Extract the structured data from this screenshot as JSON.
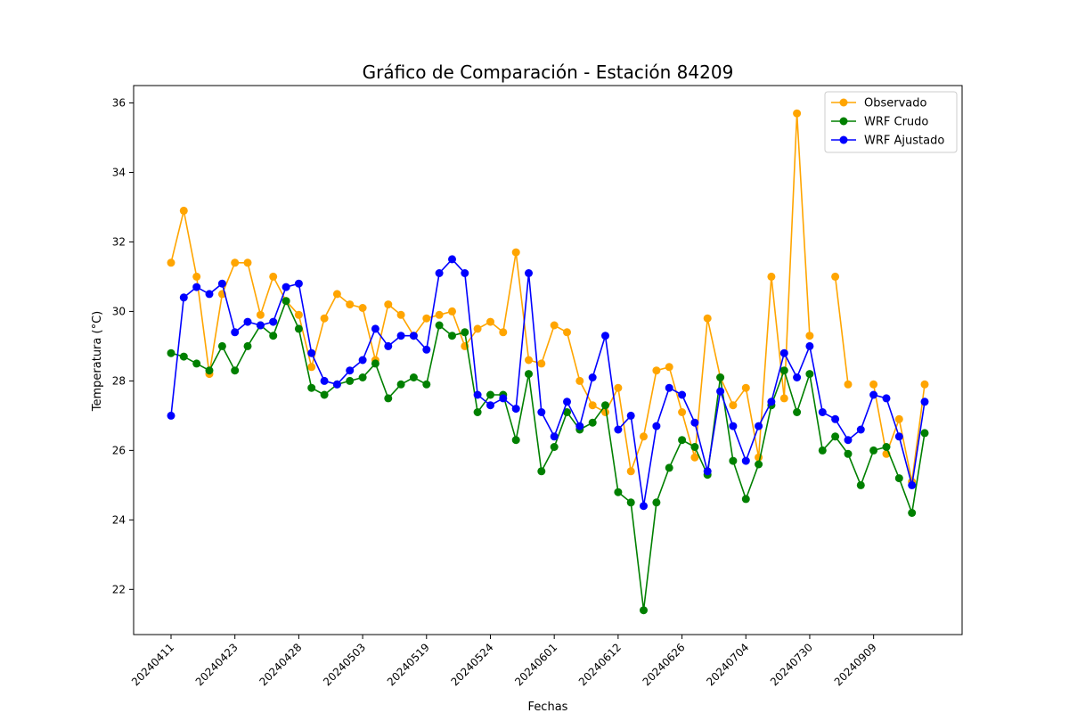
{
  "chart_data": {
    "type": "line",
    "title": "Gráfico de Comparación - Estación 84209",
    "xlabel": "Fechas",
    "ylabel": "Temperatura (°C)",
    "ylim": [
      20.7,
      36.5
    ],
    "yticks": [
      22,
      24,
      26,
      28,
      30,
      32,
      34,
      36
    ],
    "xticks": [
      {
        "index": 0,
        "label": "20240411"
      },
      {
        "index": 5,
        "label": "20240423"
      },
      {
        "index": 10,
        "label": "20240428"
      },
      {
        "index": 15,
        "label": "20240503"
      },
      {
        "index": 20,
        "label": "20240519"
      },
      {
        "index": 25,
        "label": "20240524"
      },
      {
        "index": 30,
        "label": "20240601"
      },
      {
        "index": 35,
        "label": "20240612"
      },
      {
        "index": 40,
        "label": "20240626"
      },
      {
        "index": 45,
        "label": "20240704"
      },
      {
        "index": 50,
        "label": "20240730"
      },
      {
        "index": 55,
        "label": "20240909"
      }
    ],
    "grid": false,
    "legend": "top-right",
    "series": [
      {
        "name": "Observado",
        "color": "#ffa500",
        "values": [
          31.4,
          32.9,
          31.0,
          28.2,
          30.5,
          31.4,
          31.4,
          29.9,
          31.0,
          30.3,
          29.9,
          28.4,
          29.8,
          30.5,
          30.2,
          30.1,
          28.6,
          30.2,
          29.9,
          29.3,
          29.8,
          29.9,
          30.0,
          29.0,
          29.5,
          29.7,
          29.4,
          31.7,
          28.6,
          28.5,
          29.6,
          29.4,
          28.0,
          27.3,
          27.1,
          27.8,
          25.4,
          26.4,
          28.3,
          28.4,
          27.1,
          25.8,
          29.8,
          28.1,
          27.3,
          27.8,
          25.8,
          31.0,
          27.5,
          35.7,
          29.3,
          null,
          31.0,
          27.9,
          null,
          27.9,
          25.9,
          26.9,
          25.1,
          27.9
        ]
      },
      {
        "name": "WRF Crudo",
        "color": "#008000",
        "values": [
          28.8,
          28.7,
          28.5,
          28.3,
          29.0,
          28.3,
          29.0,
          29.6,
          29.3,
          30.3,
          29.5,
          27.8,
          27.6,
          27.9,
          28.0,
          28.1,
          28.5,
          27.5,
          27.9,
          28.1,
          27.9,
          29.6,
          29.3,
          29.4,
          27.1,
          27.6,
          27.6,
          26.3,
          28.2,
          25.4,
          26.1,
          27.1,
          26.6,
          26.8,
          27.3,
          24.8,
          24.5,
          21.4,
          24.5,
          25.5,
          26.3,
          26.1,
          25.3,
          28.1,
          25.7,
          24.6,
          25.6,
          27.3,
          28.3,
          27.1,
          28.2,
          26.0,
          26.4,
          25.9,
          25.0,
          26.0,
          26.1,
          25.2,
          24.2,
          26.5
        ]
      },
      {
        "name": "WRF Ajustado",
        "color": "#0000ff",
        "values": [
          27.0,
          30.4,
          30.7,
          30.5,
          30.8,
          29.4,
          29.7,
          29.6,
          29.7,
          30.7,
          30.8,
          28.8,
          28.0,
          27.9,
          28.3,
          28.6,
          29.5,
          29.0,
          29.3,
          29.3,
          28.9,
          31.1,
          31.5,
          31.1,
          27.6,
          27.3,
          27.5,
          27.2,
          31.1,
          27.1,
          26.4,
          27.4,
          26.7,
          28.1,
          29.3,
          26.6,
          27.0,
          24.4,
          26.7,
          27.8,
          27.6,
          26.8,
          25.4,
          27.7,
          26.7,
          25.7,
          26.7,
          27.4,
          28.8,
          28.1,
          29.0,
          27.1,
          26.9,
          26.3,
          26.6,
          27.6,
          27.5,
          26.4,
          25.0,
          27.4
        ]
      }
    ]
  }
}
